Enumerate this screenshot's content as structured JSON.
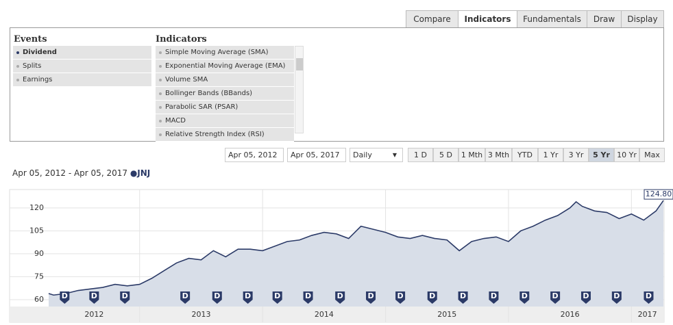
{
  "tabs": [
    "Compare",
    "Indicators",
    "Fundamentals",
    "Draw",
    "Display"
  ],
  "active_tab_index": 1,
  "events": {
    "title": "Events",
    "items": [
      "Dividend",
      "Splits",
      "Earnings"
    ],
    "selected_index": 0
  },
  "indicators": {
    "title": "Indicators",
    "items": [
      "Simple Moving Average (SMA)",
      "Exponential Moving Average (EMA)",
      "Volume SMA",
      "Bollinger Bands (BBands)",
      "Parabolic SAR (PSAR)",
      "MACD",
      "Relative Strength Index (RSI)"
    ]
  },
  "controls": {
    "start_date": "Apr 05, 2012",
    "end_date": "Apr 05, 2017",
    "interval": "Daily",
    "ranges": [
      "1 D",
      "5 D",
      "1 Mth",
      "3 Mth",
      "YTD",
      "1 Yr",
      "3 Yr",
      "5 Yr",
      "10 Yr",
      "Max"
    ],
    "active_range_index": 7
  },
  "chart_data": {
    "type": "line",
    "subtitle": "Apr 05, 2012 - Apr 05, 2017",
    "series": [
      {
        "name": "JNJ",
        "color": "#2b3a67",
        "x": [
          2012.26,
          2012.3,
          2012.4,
          2012.5,
          2012.6,
          2012.7,
          2012.8,
          2012.9,
          2013.0,
          2013.1,
          2013.2,
          2013.3,
          2013.4,
          2013.5,
          2013.6,
          2013.7,
          2013.8,
          2013.9,
          2014.0,
          2014.1,
          2014.2,
          2014.3,
          2014.4,
          2014.5,
          2014.6,
          2014.7,
          2014.8,
          2014.9,
          2015.0,
          2015.1,
          2015.2,
          2015.3,
          2015.4,
          2015.5,
          2015.6,
          2015.7,
          2015.8,
          2015.9,
          2016.0,
          2016.1,
          2016.2,
          2016.3,
          2016.4,
          2016.5,
          2016.55,
          2016.6,
          2016.7,
          2016.8,
          2016.9,
          2017.0,
          2017.1,
          2017.2,
          2017.26
        ],
        "values": [
          64,
          63,
          64,
          66,
          67,
          68,
          70,
          69,
          70,
          74,
          79,
          84,
          87,
          86,
          92,
          88,
          93,
          93,
          92,
          95,
          98,
          99,
          102,
          104,
          103,
          100,
          108,
          106,
          104,
          101,
          100,
          102,
          100,
          99,
          92,
          98,
          100,
          101,
          98,
          105,
          108,
          112,
          115,
          120,
          124,
          121,
          118,
          117,
          113,
          116,
          112,
          118,
          124.8
        ],
        "value_labels": [
          null,
          null,
          null,
          null,
          null,
          null,
          null,
          null,
          null,
          null,
          null,
          null,
          null,
          null,
          null,
          null,
          null,
          null,
          null,
          null,
          null,
          null,
          null,
          null,
          null,
          null,
          null,
          null,
          null,
          null,
          null,
          null,
          null,
          null,
          null,
          null,
          null,
          null,
          null,
          null,
          null,
          null,
          null,
          null,
          null,
          null,
          null,
          null,
          null,
          null,
          null,
          null,
          "124.80"
        ]
      }
    ],
    "x_bands": [
      "2012",
      "2013",
      "2014",
      "2015",
      "2016",
      "2017"
    ],
    "xlim": [
      2012.26,
      2017.26
    ],
    "ylim": [
      55.5,
      132
    ],
    "yticks": [
      60,
      75,
      90,
      105,
      120
    ],
    "grid": true,
    "events": {
      "label": "D",
      "x": [
        2012.39,
        2012.63,
        2012.88,
        2013.37,
        2013.63,
        2013.88,
        2014.12,
        2014.37,
        2014.63,
        2014.88,
        2015.12,
        2015.38,
        2015.63,
        2015.88,
        2016.13,
        2016.38,
        2016.63,
        2016.88,
        2017.14
      ]
    }
  }
}
